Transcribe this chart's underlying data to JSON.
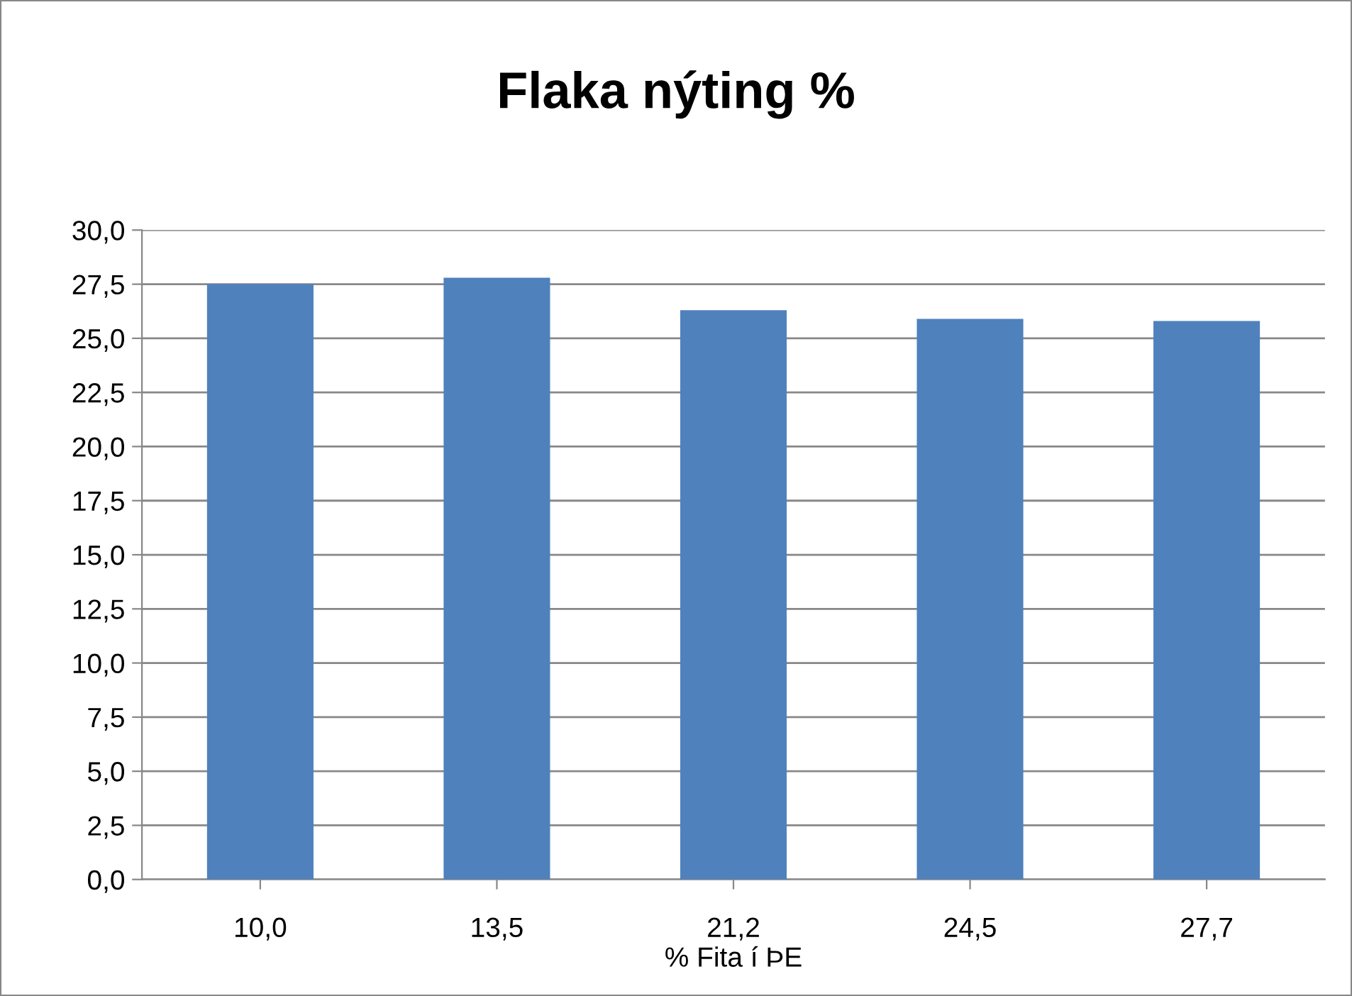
{
  "chart_data": {
    "type": "bar",
    "title": "Flaka nýting %",
    "xlabel": "% Fita í ÞE",
    "categories": [
      "10,0",
      "13,5",
      "21,2",
      "24,5",
      "27,7"
    ],
    "values": [
      27.5,
      27.8,
      26.3,
      25.9,
      25.8
    ],
    "color": "#4f81bd",
    "ylim": [
      0,
      30
    ],
    "yticks": [
      {
        "value": 0,
        "label": "0,0"
      },
      {
        "value": 2.5,
        "label": "2,5"
      },
      {
        "value": 5,
        "label": "5,0"
      },
      {
        "value": 7.5,
        "label": "7,5"
      },
      {
        "value": 10,
        "label": "10,0"
      },
      {
        "value": 12.5,
        "label": "12,5"
      },
      {
        "value": 15,
        "label": "15,0"
      },
      {
        "value": 17.5,
        "label": "17,5"
      },
      {
        "value": 20,
        "label": "20,0"
      },
      {
        "value": 22.5,
        "label": "22,5"
      },
      {
        "value": 25,
        "label": "25,0"
      },
      {
        "value": 27.5,
        "label": "27,5"
      },
      {
        "value": 30,
        "label": "30,0"
      }
    ],
    "grid": "y",
    "legend": false
  }
}
